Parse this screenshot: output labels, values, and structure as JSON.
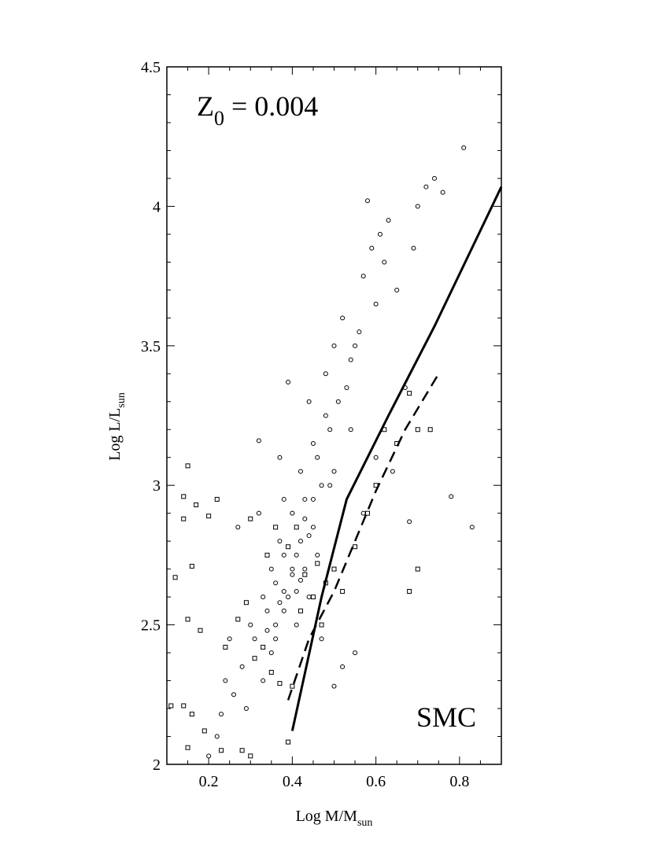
{
  "chart_data": {
    "type": "scatter",
    "annotations": [
      {
        "text": "Z",
        "subscript": "0",
        "suffix": " = 0.004",
        "corner": "top-left"
      },
      {
        "text": "SMC",
        "corner": "bottom-right"
      }
    ],
    "x_label": {
      "text": "Log M/M",
      "subscript": "sun"
    },
    "y_label": {
      "text": "Log L/L",
      "subscript": "sun"
    },
    "xlim": [
      0.1,
      0.9
    ],
    "ylim": [
      2,
      4.5
    ],
    "xticks": [
      0.2,
      0.4,
      0.6,
      0.8
    ],
    "yticks": [
      2,
      2.5,
      3,
      3.5,
      4,
      4.5
    ],
    "xminorticks": [
      0.1,
      0.15,
      0.25,
      0.3,
      0.35,
      0.45,
      0.5,
      0.55,
      0.65,
      0.7,
      0.75,
      0.85,
      0.9
    ],
    "yminorticks": [
      2.1,
      2.2,
      2.3,
      2.4,
      2.6,
      2.7,
      2.8,
      2.9,
      3.1,
      3.2,
      3.3,
      3.4,
      3.6,
      3.7,
      3.8,
      3.9,
      4.1,
      4.2,
      4.3,
      4.4
    ],
    "series": [
      {
        "marker": "circle",
        "color": "#000000",
        "x": [
          0.2,
          0.23,
          0.25,
          0.27,
          0.28,
          0.3,
          0.31,
          0.32,
          0.33,
          0.34,
          0.35,
          0.35,
          0.36,
          0.37,
          0.38,
          0.38,
          0.39,
          0.4,
          0.4,
          0.41,
          0.42,
          0.42,
          0.43,
          0.44,
          0.45,
          0.45,
          0.46,
          0.47,
          0.48,
          0.48,
          0.49,
          0.5,
          0.5,
          0.51,
          0.52,
          0.53,
          0.54,
          0.55,
          0.56,
          0.57,
          0.58,
          0.59,
          0.6,
          0.61,
          0.62,
          0.63,
          0.65,
          0.67,
          0.69,
          0.7,
          0.72,
          0.74,
          0.76,
          0.81,
          0.78,
          0.83,
          0.38,
          0.41,
          0.44,
          0.47,
          0.33,
          0.36,
          0.29,
          0.26,
          0.5,
          0.52,
          0.55,
          0.43,
          0.46,
          0.39,
          0.57,
          0.6,
          0.64,
          0.68,
          0.54,
          0.49,
          0.37,
          0.32,
          0.24,
          0.22,
          0.4,
          0.41,
          0.42,
          0.38,
          0.37,
          0.44,
          0.45,
          0.43,
          0.36,
          0.34
        ],
        "values": [
          2.03,
          2.18,
          2.45,
          2.85,
          2.35,
          2.5,
          2.45,
          3.16,
          2.6,
          2.55,
          2.7,
          2.4,
          2.65,
          2.8,
          2.75,
          2.55,
          3.37,
          2.7,
          2.9,
          2.62,
          2.8,
          3.05,
          2.95,
          3.3,
          2.85,
          3.15,
          3.1,
          3.0,
          3.25,
          3.4,
          3.2,
          3.5,
          3.05,
          3.3,
          3.6,
          3.35,
          3.45,
          3.5,
          3.55,
          3.75,
          4.02,
          3.85,
          3.65,
          3.9,
          3.8,
          3.95,
          3.7,
          3.35,
          3.85,
          4.0,
          4.07,
          4.1,
          4.05,
          4.21,
          2.96,
          2.85,
          2.95,
          2.5,
          2.6,
          2.45,
          2.3,
          2.45,
          2.2,
          2.25,
          2.28,
          2.35,
          2.4,
          2.7,
          2.75,
          2.6,
          2.9,
          3.1,
          3.05,
          2.87,
          3.2,
          3.0,
          3.1,
          2.9,
          2.3,
          2.1,
          2.68,
          2.75,
          2.66,
          2.62,
          2.58,
          2.82,
          2.95,
          2.88,
          2.5,
          2.48
        ]
      },
      {
        "marker": "square",
        "color": "#000000",
        "x": [
          0.15,
          0.14,
          0.14,
          0.17,
          0.2,
          0.22,
          0.16,
          0.12,
          0.15,
          0.18,
          0.14,
          0.16,
          0.11,
          0.15,
          0.19,
          0.23,
          0.28,
          0.3,
          0.39,
          0.24,
          0.27,
          0.29,
          0.31,
          0.33,
          0.35,
          0.37,
          0.4,
          0.42,
          0.45,
          0.48,
          0.5,
          0.52,
          0.55,
          0.58,
          0.6,
          0.62,
          0.65,
          0.68,
          0.7,
          0.73,
          0.7,
          0.68,
          0.3,
          0.34,
          0.36,
          0.39,
          0.41,
          0.43,
          0.46,
          0.47
        ],
        "values": [
          3.07,
          2.96,
          2.88,
          2.93,
          2.89,
          2.95,
          2.71,
          2.67,
          2.52,
          2.48,
          2.21,
          2.18,
          2.21,
          2.06,
          2.12,
          2.05,
          2.05,
          2.03,
          2.08,
          2.42,
          2.52,
          2.58,
          2.38,
          2.42,
          2.33,
          2.29,
          2.28,
          2.55,
          2.6,
          2.65,
          2.7,
          2.62,
          2.78,
          2.9,
          3.0,
          3.2,
          3.15,
          3.33,
          3.2,
          3.2,
          2.7,
          2.62,
          2.88,
          2.75,
          2.85,
          2.78,
          2.85,
          2.68,
          2.72,
          2.5
        ]
      },
      {
        "marker": "line",
        "dash": "solid",
        "color": "#000000",
        "x": [
          0.4,
          0.47,
          0.53,
          0.63,
          0.74,
          0.9
        ],
        "values": [
          2.12,
          2.6,
          2.95,
          3.25,
          3.57,
          4.07
        ]
      },
      {
        "marker": "line",
        "dash": "dashed",
        "color": "#000000",
        "x": [
          0.39,
          0.44,
          0.5,
          0.6,
          0.67,
          0.75
        ],
        "values": [
          2.23,
          2.45,
          2.62,
          2.98,
          3.2,
          3.4
        ]
      }
    ]
  }
}
